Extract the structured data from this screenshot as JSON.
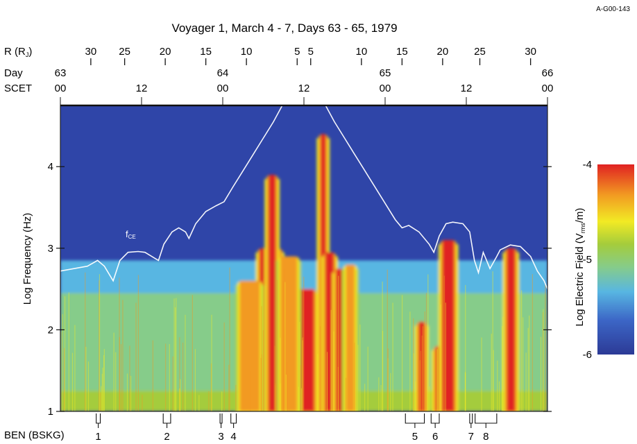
{
  "figure_id": "A-G00-143",
  "chart_data": {
    "type": "heatmap",
    "title": "Voyager 1, March 4 - 7, Days 63 - 65, 1979",
    "ylabel": "Log Frequency (Hz)",
    "ylim": [
      1,
      4.75
    ],
    "y_ticks": [
      "1",
      "2",
      "3",
      "4"
    ],
    "time_axis": {
      "label_day": "Day",
      "label_scet": "SCET",
      "xlim_hours": [
        0,
        72
      ],
      "day_ticks": [
        {
          "hour": 0,
          "day": "63",
          "scet": "00"
        },
        {
          "hour": 12,
          "day": "",
          "scet": "12"
        },
        {
          "hour": 24,
          "day": "64",
          "scet": "00"
        },
        {
          "hour": 36,
          "day": "",
          "scet": "12"
        },
        {
          "hour": 48,
          "day": "65",
          "scet": "00"
        },
        {
          "hour": 60,
          "day": "",
          "scet": "12"
        },
        {
          "hour": 72,
          "day": "66",
          "scet": "00"
        }
      ]
    },
    "radius_axis": {
      "label": "R (R",
      "label_sub": "J",
      "label_end": ")",
      "ticks": [
        {
          "hour": 4.5,
          "label": "30"
        },
        {
          "hour": 9.5,
          "label": "25"
        },
        {
          "hour": 15.5,
          "label": "20"
        },
        {
          "hour": 21.5,
          "label": "15"
        },
        {
          "hour": 27.5,
          "label": "10"
        },
        {
          "hour": 35,
          "label": "5"
        },
        {
          "hour": 37,
          "label": "5"
        },
        {
          "hour": 44.5,
          "label": "10"
        },
        {
          "hour": 50.5,
          "label": "15"
        },
        {
          "hour": 56.5,
          "label": "20"
        },
        {
          "hour": 62,
          "label": "25"
        },
        {
          "hour": 69.5,
          "label": "30"
        }
      ]
    },
    "colorbar": {
      "label": "Log Electric Field (V",
      "label_sub": "rms",
      "label_end": "/m)",
      "range": [
        -6,
        -4
      ],
      "ticks": [
        "-4",
        "-5",
        "-6"
      ],
      "colors": [
        "#2c3a96",
        "#3c66c6",
        "#58b6e2",
        "#86cc8a",
        "#a4cc3c",
        "#f2ea24",
        "#f29a22",
        "#e02222"
      ]
    },
    "fce_label": "f",
    "fce_sub": "CE",
    "fce_curve": [
      [
        0,
        2.72
      ],
      [
        2,
        2.75
      ],
      [
        4,
        2.78
      ],
      [
        5.5,
        2.85
      ],
      [
        6.5,
        2.78
      ],
      [
        7.8,
        2.6
      ],
      [
        8.8,
        2.85
      ],
      [
        10,
        2.95
      ],
      [
        11.5,
        2.96
      ],
      [
        12.5,
        2.95
      ],
      [
        13.5,
        2.9
      ],
      [
        14.5,
        2.85
      ],
      [
        15.3,
        3.05
      ],
      [
        16.5,
        3.2
      ],
      [
        17.5,
        3.25
      ],
      [
        18.5,
        3.2
      ],
      [
        19,
        3.12
      ],
      [
        20,
        3.3
      ],
      [
        21.5,
        3.45
      ],
      [
        23,
        3.52
      ],
      [
        24.2,
        3.57
      ],
      [
        25.5,
        3.75
      ],
      [
        27,
        3.95
      ],
      [
        28.5,
        4.15
      ],
      [
        30,
        4.35
      ],
      [
        31.5,
        4.55
      ],
      [
        32.8,
        4.75
      ],
      null,
      [
        39.2,
        4.75
      ],
      [
        40.5,
        4.55
      ],
      [
        42,
        4.35
      ],
      [
        43.5,
        4.15
      ],
      [
        45,
        3.95
      ],
      [
        46.5,
        3.75
      ],
      [
        48,
        3.55
      ],
      [
        49.5,
        3.35
      ],
      [
        50.5,
        3.25
      ],
      [
        51.5,
        3.28
      ],
      [
        53,
        3.2
      ],
      [
        54.5,
        3.05
      ],
      [
        55.2,
        2.95
      ],
      [
        56,
        3.15
      ],
      [
        57,
        3.3
      ],
      [
        58,
        3.32
      ],
      [
        59.5,
        3.3
      ],
      [
        60.5,
        3.2
      ],
      [
        61.2,
        2.85
      ],
      [
        61.8,
        2.7
      ],
      [
        62.5,
        2.95
      ],
      [
        63.5,
        2.75
      ],
      [
        64.5,
        2.9
      ],
      [
        65,
        2.98
      ],
      [
        66.5,
        3.04
      ],
      [
        68,
        3.02
      ],
      [
        69.5,
        2.9
      ],
      [
        70.5,
        2.72
      ],
      [
        71.5,
        2.6
      ],
      [
        72,
        2.5
      ]
    ],
    "bands": [
      {
        "from": 29.5,
        "to": 32.5,
        "top": 3.0,
        "level": 7
      },
      {
        "from": 30.8,
        "to": 31.8,
        "top": 3.9,
        "level": 7
      },
      {
        "from": 35.5,
        "to": 37.5,
        "top": 2.5,
        "level": 7
      },
      {
        "from": 38.5,
        "to": 39.2,
        "top": 4.4,
        "level": 7
      },
      {
        "from": 39.2,
        "to": 40.4,
        "top": 2.95,
        "level": 7
      },
      {
        "from": 40.8,
        "to": 42.2,
        "top": 2.75,
        "level": 7
      },
      {
        "from": 53,
        "to": 53.8,
        "top": 2.1,
        "level": 7
      },
      {
        "from": 55.5,
        "to": 56.3,
        "top": 1.8,
        "level": 7
      },
      {
        "from": 56.5,
        "to": 58.2,
        "top": 3.1,
        "level": 7
      },
      {
        "from": 66,
        "to": 67.2,
        "top": 3.0,
        "level": 7
      },
      {
        "from": 26.5,
        "to": 29.5,
        "top": 2.6,
        "level": 6
      },
      {
        "from": 32.5,
        "to": 35,
        "top": 2.9,
        "level": 6
      },
      {
        "from": 42.2,
        "to": 43.5,
        "top": 2.8,
        "level": 6
      }
    ],
    "ben_label": "BEN (BSKG)",
    "ben_events": [
      {
        "label": "1",
        "from": 5.3,
        "to": 5.9
      },
      {
        "label": "2",
        "from": 15.2,
        "to": 16.3
      },
      {
        "label": "3",
        "from": 23.6,
        "to": 23.9
      },
      {
        "label": "4",
        "from": 25.2,
        "to": 26.0
      },
      {
        "label": "5",
        "from": 51.0,
        "to": 53.8
      },
      {
        "label": "6",
        "from": 54.8,
        "to": 56.0
      },
      {
        "label": "7",
        "from": 60.5,
        "to": 60.9
      },
      {
        "label": "8",
        "from": 61.3,
        "to": 64.5
      }
    ]
  }
}
